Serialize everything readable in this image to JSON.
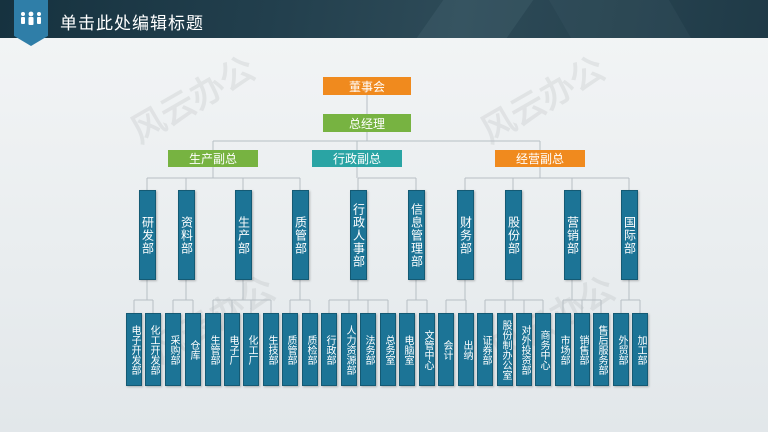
{
  "header": {
    "title": "单击此处编辑标题"
  },
  "watermark": "风云办公",
  "colors": {
    "chairman": "#f08a1e",
    "gm": "#77b341",
    "vp_production": "#77b341",
    "vp_admin": "#2aa4a4",
    "vp_business": "#f08a1e",
    "dept": "#1c7496"
  },
  "org": {
    "chairman": "董事会",
    "gm": "总经理",
    "vps": [
      "生产副总",
      "行政副总",
      "经营副总"
    ],
    "depts": [
      "研发部",
      "资料部",
      "生产部",
      "质管部",
      "行政人事部",
      "信息管理部",
      "财务部",
      "股份部",
      "营销部",
      "国际部"
    ],
    "leaves": [
      "电子开发部",
      "化工开发部",
      "采购部",
      "仓库",
      "生管部",
      "电子厂",
      "化工厂",
      "生技部",
      "质管部",
      "质检部",
      "行政部",
      "人力资源部",
      "法务部",
      "总务室",
      "电脑室",
      "文管中心",
      "会计",
      "出纳",
      "证券部",
      "股份制办公室",
      "对外投资部",
      "商务中心",
      "市场部",
      "销售部",
      "售后服务部",
      "外贸部",
      "加工部"
    ]
  }
}
